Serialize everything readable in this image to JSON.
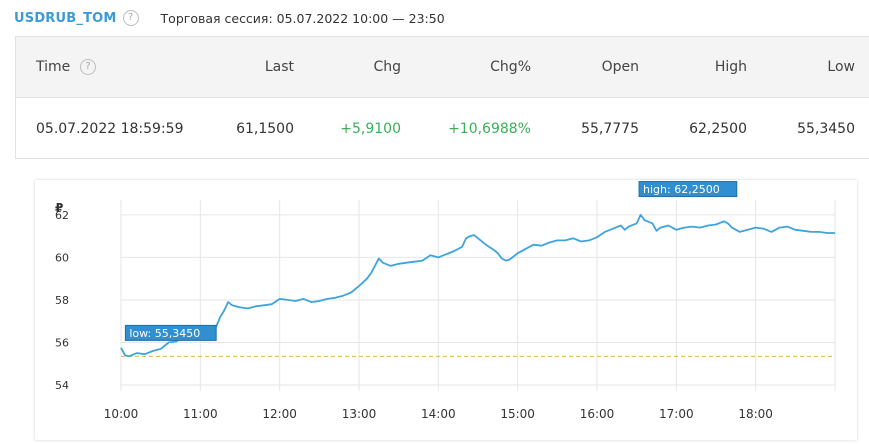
{
  "header": {
    "ticker": "USDRUB_TOM",
    "help_glyph": "?",
    "session": "Торговая сессия: 05.07.2022 10:00 — 23:50"
  },
  "quote_table": {
    "columns": [
      "Time",
      "Last",
      "Chg",
      "Chg%",
      "Open",
      "High",
      "Low"
    ],
    "row": {
      "time": "05.07.2022 18:59:59",
      "last": "61,1500",
      "chg": "+5,9100",
      "chg_pct": "+10,6988%",
      "open": "55,7775",
      "high": "62,2500",
      "low": "55,3450"
    },
    "positive_color": "#3cae5a"
  },
  "chart_data": {
    "type": "line",
    "currency_symbol": "₽",
    "y_ticks": [
      "62",
      "60",
      "58",
      "56",
      "54"
    ],
    "ylim": [
      54,
      62.7
    ],
    "x_ticks": [
      "10:00",
      "11:00",
      "12:00",
      "13:00",
      "14:00",
      "15:00",
      "16:00",
      "17:00",
      "18:00"
    ],
    "x_unit_range": [
      0,
      9
    ],
    "grid": true,
    "line_color": "#3fa3dc",
    "low_line_color": "#e8b04a",
    "annotations": {
      "low": {
        "label": "low: 55,3450",
        "x": 0.03,
        "y": 55.345
      },
      "high": {
        "label": "high: 62,2500",
        "x": 6.53,
        "y": 62.25
      }
    },
    "series": [
      {
        "points": [
          [
            0.0,
            55.75
          ],
          [
            0.05,
            55.4
          ],
          [
            0.1,
            55.35
          ],
          [
            0.2,
            55.5
          ],
          [
            0.3,
            55.45
          ],
          [
            0.4,
            55.6
          ],
          [
            0.5,
            55.7
          ],
          [
            0.6,
            56.0
          ],
          [
            0.7,
            56.05
          ],
          [
            0.8,
            56.35
          ],
          [
            0.9,
            56.3
          ],
          [
            1.0,
            56.55
          ],
          [
            1.1,
            56.7
          ],
          [
            1.2,
            56.75
          ],
          [
            1.25,
            57.2
          ],
          [
            1.3,
            57.5
          ],
          [
            1.35,
            57.9
          ],
          [
            1.4,
            57.75
          ],
          [
            1.5,
            57.65
          ],
          [
            1.6,
            57.6
          ],
          [
            1.7,
            57.7
          ],
          [
            1.8,
            57.75
          ],
          [
            1.9,
            57.8
          ],
          [
            2.0,
            58.05
          ],
          [
            2.1,
            58.0
          ],
          [
            2.2,
            57.95
          ],
          [
            2.3,
            58.05
          ],
          [
            2.4,
            57.9
          ],
          [
            2.5,
            57.95
          ],
          [
            2.6,
            58.05
          ],
          [
            2.7,
            58.1
          ],
          [
            2.8,
            58.2
          ],
          [
            2.9,
            58.35
          ],
          [
            3.0,
            58.65
          ],
          [
            3.1,
            59.0
          ],
          [
            3.15,
            59.25
          ],
          [
            3.2,
            59.6
          ],
          [
            3.25,
            59.95
          ],
          [
            3.3,
            59.75
          ],
          [
            3.4,
            59.6
          ],
          [
            3.5,
            59.7
          ],
          [
            3.6,
            59.75
          ],
          [
            3.7,
            59.8
          ],
          [
            3.8,
            59.85
          ],
          [
            3.9,
            60.1
          ],
          [
            4.0,
            60.0
          ],
          [
            4.1,
            60.15
          ],
          [
            4.2,
            60.3
          ],
          [
            4.3,
            60.5
          ],
          [
            4.35,
            60.9
          ],
          [
            4.4,
            61.0
          ],
          [
            4.45,
            61.05
          ],
          [
            4.5,
            60.9
          ],
          [
            4.6,
            60.6
          ],
          [
            4.7,
            60.35
          ],
          [
            4.75,
            60.2
          ],
          [
            4.8,
            59.95
          ],
          [
            4.85,
            59.85
          ],
          [
            4.9,
            59.9
          ],
          [
            5.0,
            60.2
          ],
          [
            5.1,
            60.4
          ],
          [
            5.2,
            60.6
          ],
          [
            5.3,
            60.55
          ],
          [
            5.4,
            60.7
          ],
          [
            5.5,
            60.8
          ],
          [
            5.6,
            60.8
          ],
          [
            5.7,
            60.9
          ],
          [
            5.8,
            60.75
          ],
          [
            5.9,
            60.8
          ],
          [
            6.0,
            60.95
          ],
          [
            6.1,
            61.2
          ],
          [
            6.2,
            61.35
          ],
          [
            6.3,
            61.5
          ],
          [
            6.35,
            61.3
          ],
          [
            6.4,
            61.45
          ],
          [
            6.5,
            61.6
          ],
          [
            6.55,
            62.0
          ],
          [
            6.6,
            61.75
          ],
          [
            6.7,
            61.6
          ],
          [
            6.75,
            61.25
          ],
          [
            6.8,
            61.4
          ],
          [
            6.9,
            61.5
          ],
          [
            7.0,
            61.3
          ],
          [
            7.1,
            61.4
          ],
          [
            7.2,
            61.45
          ],
          [
            7.3,
            61.4
          ],
          [
            7.4,
            61.5
          ],
          [
            7.5,
            61.55
          ],
          [
            7.6,
            61.7
          ],
          [
            7.65,
            61.6
          ],
          [
            7.7,
            61.4
          ],
          [
            7.8,
            61.2
          ],
          [
            7.9,
            61.3
          ],
          [
            8.0,
            61.4
          ],
          [
            8.1,
            61.35
          ],
          [
            8.2,
            61.2
          ],
          [
            8.3,
            61.4
          ],
          [
            8.4,
            61.45
          ],
          [
            8.5,
            61.3
          ],
          [
            8.6,
            61.25
          ],
          [
            8.7,
            61.2
          ],
          [
            8.8,
            61.2
          ],
          [
            8.9,
            61.15
          ],
          [
            9.0,
            61.15
          ]
        ]
      }
    ]
  }
}
